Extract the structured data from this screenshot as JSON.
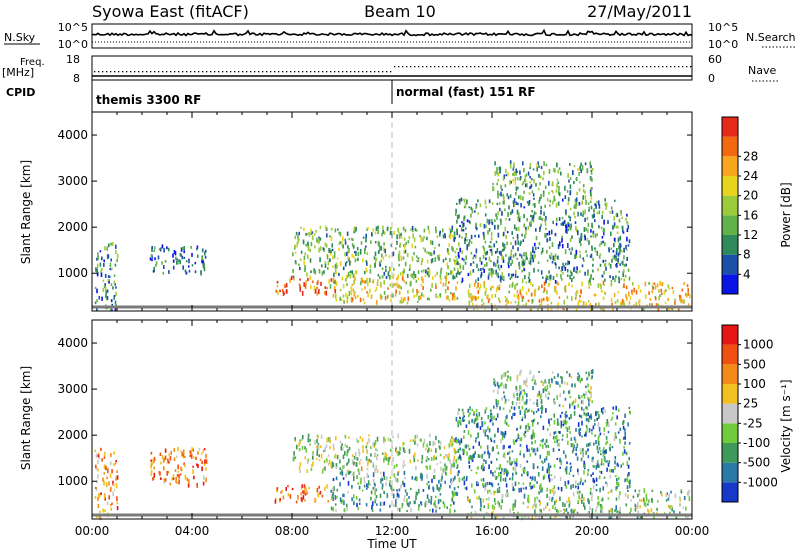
{
  "header": {
    "station": "Syowa East (fitACF)",
    "beam": "Beam 10",
    "date": "27/May/2011"
  },
  "top_panels": {
    "nsky_label": "N.Sky",
    "nsky_ticks": [
      "10^5",
      "10^0"
    ],
    "nsearch_label": "N.Search",
    "nsearch_ticks": [
      "10^5",
      "10^0"
    ],
    "freq_label": "Freq.",
    "freq_unit": "[MHz]",
    "freq_ticks": [
      "18",
      "8"
    ],
    "nave_label": "Nave",
    "nave_ticks": [
      "60",
      "0"
    ],
    "cpid_label": "CPID",
    "cpid_modes": [
      {
        "name": "themis 3300 RF",
        "start_hour": 0
      },
      {
        "name": "normal (fast) 151 RF",
        "start_hour": 12
      }
    ]
  },
  "chart_data": [
    {
      "type": "heatmap",
      "title": "",
      "parameter": "Power",
      "ylabel": "Slant Range [km]",
      "xlabel": "Time UT",
      "xlim": [
        0,
        24
      ],
      "ylim": [
        180,
        4500
      ],
      "yticks": [
        "1000",
        "2000",
        "3000",
        "4000"
      ],
      "colorbar_label": "Power [dB]",
      "colorbar_ticks": [
        "4",
        "8",
        "12",
        "16",
        "20",
        "24",
        "28"
      ],
      "colorbar_colors": [
        "#0a14e6",
        "#1c4fa8",
        "#2e8a5a",
        "#62b24a",
        "#9ccc3c",
        "#e8d41c",
        "#f7a61e",
        "#f26a10",
        "#e62a1a"
      ],
      "echo_regions": [
        {
          "t0": 0.1,
          "t1": 1.0,
          "r0": 200,
          "r1": 1700,
          "level": 0.3
        },
        {
          "t0": 2.3,
          "t1": 4.6,
          "r0": 1000,
          "r1": 1600,
          "level": 0.2
        },
        {
          "t0": 7.3,
          "t1": 9.7,
          "r0": 550,
          "r1": 900,
          "level": 0.85
        },
        {
          "t0": 8.0,
          "t1": 14.6,
          "r0": 900,
          "r1": 2000,
          "level": 0.4
        },
        {
          "t0": 9.5,
          "t1": 14.6,
          "r0": 350,
          "r1": 900,
          "level": 0.6
        },
        {
          "t0": 15.0,
          "t1": 23.9,
          "r0": 200,
          "r1": 800,
          "level": 0.65
        },
        {
          "t0": 14.5,
          "t1": 21.5,
          "r0": 800,
          "r1": 2600,
          "level": 0.3
        },
        {
          "t0": 16.0,
          "t1": 20.0,
          "r0": 2600,
          "r1": 3400,
          "level": 0.35
        }
      ]
    },
    {
      "type": "heatmap",
      "title": "",
      "parameter": "Velocity",
      "ylabel": "Slant Range [km]",
      "xlabel": "Time UT",
      "xlim": [
        0,
        24
      ],
      "ylim": [
        180,
        4500
      ],
      "yticks": [
        "1000",
        "2000",
        "3000",
        "4000"
      ],
      "xticks": [
        "00:00",
        "04:00",
        "08:00",
        "12:00",
        "16:00",
        "20:00",
        "00:00"
      ],
      "colorbar_label": "Velocity [m s⁻¹]",
      "colorbar_ticks": [
        "1000",
        "500",
        "100",
        "25",
        "-25",
        "-100",
        "-500",
        "-1000"
      ],
      "colorbar_colors": [
        "#1838c8",
        "#2a7aa8",
        "#3f9a5a",
        "#70cc3c",
        "#c8c8c8",
        "#f2c020",
        "#f48a18",
        "#f05010",
        "#e61616"
      ],
      "echo_regions": [
        {
          "t0": 0.1,
          "t1": 1.0,
          "r0": 200,
          "r1": 1700,
          "level": 0.7
        },
        {
          "t0": 2.3,
          "t1": 4.6,
          "r0": 900,
          "r1": 1700,
          "level": 0.75
        },
        {
          "t0": 7.3,
          "t1": 9.7,
          "r0": 550,
          "r1": 900,
          "level": 0.8
        },
        {
          "t0": 8.0,
          "t1": 14.6,
          "r0": 1200,
          "r1": 2000,
          "level": 0.45
        },
        {
          "t0": 9.5,
          "t1": 14.6,
          "r0": 350,
          "r1": 1200,
          "level": 0.3
        },
        {
          "t0": 15.0,
          "t1": 23.9,
          "r0": 200,
          "r1": 800,
          "level": 0.4
        },
        {
          "t0": 14.5,
          "t1": 21.5,
          "r0": 800,
          "r1": 2600,
          "level": 0.25
        },
        {
          "t0": 16.0,
          "t1": 20.0,
          "r0": 2600,
          "r1": 3400,
          "level": 0.35
        }
      ]
    }
  ]
}
